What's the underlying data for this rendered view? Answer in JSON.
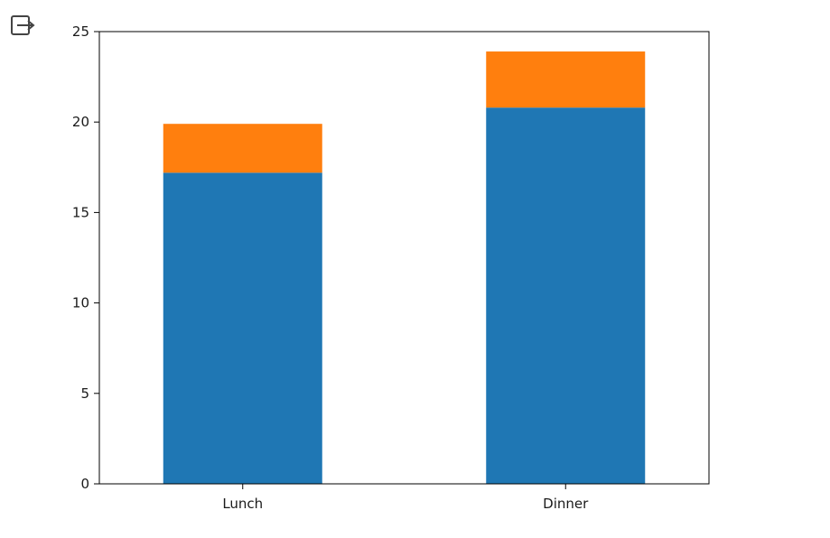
{
  "output_icon": "output-redirect-icon",
  "chart_data": {
    "type": "bar",
    "stacked": true,
    "categories": [
      "Lunch",
      "Dinner"
    ],
    "series": [
      {
        "values": [
          17.2,
          20.8
        ],
        "color": "#1f77b4"
      },
      {
        "values": [
          2.7,
          3.1
        ],
        "color": "#ff7f0e"
      }
    ],
    "title": "",
    "xlabel": "",
    "ylabel": "",
    "ylim": [
      0,
      25
    ],
    "yticks": [
      0,
      5,
      10,
      15,
      20,
      25
    ],
    "grid": false,
    "legend": "none"
  }
}
